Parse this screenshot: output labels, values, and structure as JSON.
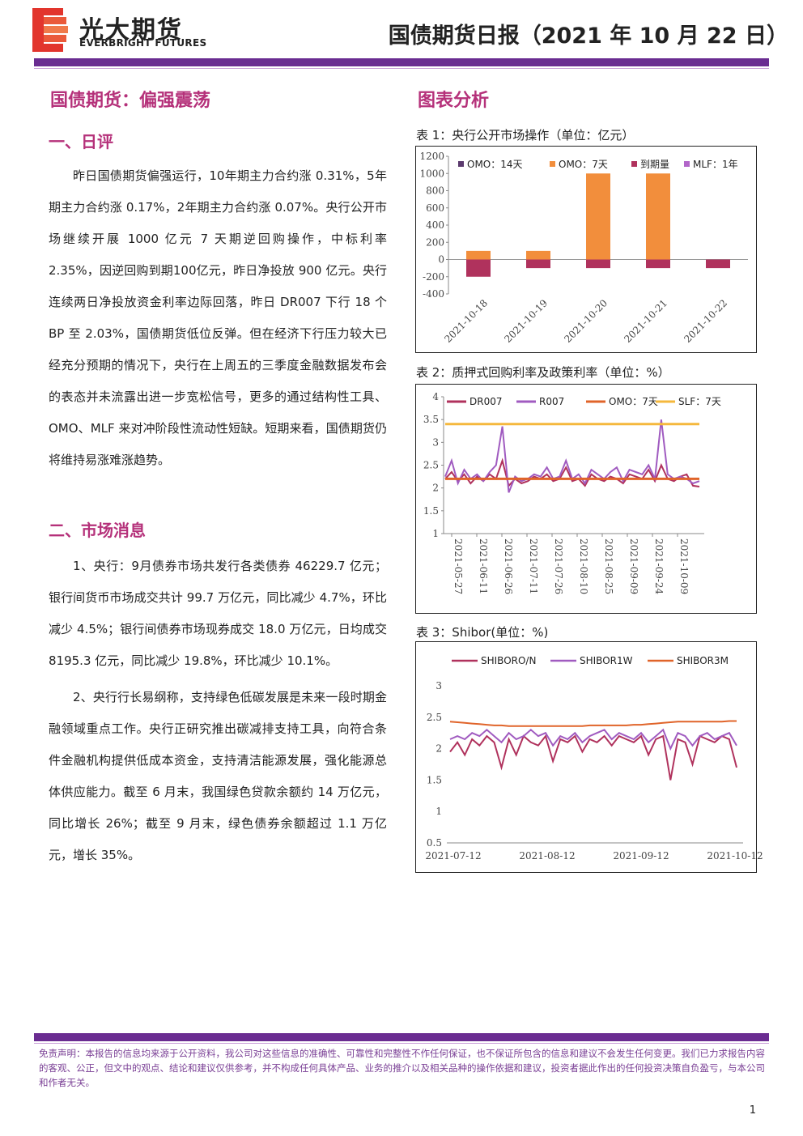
{
  "header": {
    "brand_cn": "光大期货",
    "brand_en": "EVERBRIGHT FUTURES",
    "report_title": "国债期货日报（2021 年 10 月 22 日）"
  },
  "left": {
    "main_title": "国债期货：偏强震荡",
    "section1_title": "一、日评",
    "section1_paragraphs": [
      "昨日国债期货偏强运行，10年期主力合约涨 0.31%，5年期主力合约涨 0.17%，2年期主力合约涨 0.07%。央行公开市场继续开展 1000 亿元 7 天期逆回购操作，中标利率 2.35%，因逆回购到期100亿元，昨日净投放 900 亿元。央行连续两日净投放资金利率边际回落，昨日 DR007 下行 18 个 BP 至 2.03%，国债期货低位反弹。但在经济下行压力较大已经充分预期的情况下，央行在上周五的三季度金融数据发布会的表态并未流露出进一步宽松信号，更多的通过结构性工具、OMO、MLF 来对冲阶段性流动性短缺。短期来看，国债期货仍将维持易涨难涨趋势。"
    ],
    "section2_title": "二、市场消息",
    "section2_paragraphs": [
      "1、央行：9月债券市场共发行各类债券 46229.7 亿元；银行间货币市场成交共计 99.7 万亿元，同比减少 4.7%，环比减少 4.5%；银行间债券市场现券成交 18.0 万亿元，日均成交 8195.3 亿元，同比减少 19.8%，环比减少 10.1%。",
      "2、央行行长易纲称，支持绿色低碳发展是未来一段时期金融领域重点工作。央行正研究推出碳减排支持工具，向符合条件金融机构提供低成本资金，支持清洁能源发展，强化能源总体供应能力。截至 6 月末，我国绿色贷款余额约 14 万亿元，同比增长 26%；截至 9 月末，绿色债券余额超过 1.1 万亿元，增长 35%。"
    ]
  },
  "right": {
    "section_title": "图表分析",
    "chart1_caption": "表 1：央行公开市场操作（单位：亿元）",
    "chart2_caption": "表 2：质押式回购利率及政策利率（单位：%）",
    "chart3_caption": "表 3：Shibor(单位：%)"
  },
  "footer": {
    "disclaimer": "免责声明：本报告的信息均来源于公开资料，我公司对这些信息的准确性、可靠性和完整性不作任何保证，也不保证所包含的信息和建议不会发生任何变更。我们已力求报告内容的客观、公正，但文中的观点、结论和建议仅供参考，并不构成任何具体产品、业务的推介以及相关品种的操作依据和建议，投资者据此作出的任何投资决策自负盈亏，与本公司和作者无关。",
    "page_number": "1"
  },
  "colors": {
    "brand_purple": "#6a2c91",
    "heading_magenta": "#b5317a",
    "omo14": "#5b3a6e",
    "omo7": "#f28e3c",
    "maturity": "#b0325d",
    "mlf": "#b266c9",
    "dr007": "#b0325d",
    "r007": "#a05bc0",
    "omo_line": "#e0642a",
    "slf": "#f5b83d",
    "shibor_on": "#b0325d",
    "shibor_1w": "#a05bc0",
    "shibor_3m": "#e0642a"
  },
  "chart_data": [
    {
      "type": "bar",
      "categories": [
        "2021-10-18",
        "2021-10-19",
        "2021-10-20",
        "2021-10-21",
        "2021-10-22"
      ],
      "ylim": [
        -400,
        1200
      ],
      "yticks": [
        -400,
        -200,
        0,
        200,
        400,
        600,
        800,
        1000,
        1200
      ],
      "legend_position": "top",
      "series": [
        {
          "name": "OMO：14天",
          "values": [
            0,
            0,
            0,
            0,
            0
          ]
        },
        {
          "name": "OMO：7天",
          "values": [
            100,
            100,
            1000,
            1000,
            0
          ]
        },
        {
          "name": "到期量",
          "values": [
            -200,
            -100,
            -100,
            -100,
            -100
          ]
        },
        {
          "name": "MLF：1年",
          "values": [
            0,
            0,
            0,
            0,
            0
          ]
        }
      ]
    },
    {
      "type": "line",
      "x_tick_labels": [
        "2021-05-27",
        "2021-06-11",
        "2021-06-26",
        "2021-07-11",
        "2021-07-26",
        "2021-08-10",
        "2021-08-25",
        "2021-09-09",
        "2021-09-24",
        "2021-10-09"
      ],
      "x_range": [
        "2021-05-21",
        "2021-10-22"
      ],
      "ylim": [
        1,
        4
      ],
      "yticks": [
        1,
        1.5,
        2,
        2.5,
        3,
        3.5,
        4
      ],
      "legend_position": "top",
      "series": [
        {
          "name": "DR007",
          "values": [
            2.2,
            2.35,
            2.15,
            2.3,
            2.1,
            2.25,
            2.15,
            2.3,
            2.2,
            2.6,
            2.05,
            2.2,
            2.1,
            2.15,
            2.25,
            2.2,
            2.3,
            2.15,
            2.2,
            2.45,
            2.15,
            2.2,
            2.05,
            2.3,
            2.2,
            2.15,
            2.25,
            2.2,
            2.1,
            2.3,
            2.25,
            2.2,
            2.4,
            2.15,
            2.5,
            2.2,
            2.15,
            2.25,
            2.3,
            2.05,
            2.03
          ]
        },
        {
          "name": "R007",
          "values": [
            2.25,
            2.6,
            2.1,
            2.4,
            2.2,
            2.3,
            2.15,
            2.35,
            2.5,
            3.35,
            1.9,
            2.25,
            2.15,
            2.2,
            2.3,
            2.25,
            2.45,
            2.2,
            2.25,
            2.6,
            2.2,
            2.3,
            2.1,
            2.4,
            2.3,
            2.2,
            2.35,
            2.45,
            2.15,
            2.4,
            2.35,
            2.3,
            2.5,
            2.2,
            3.5,
            2.3,
            2.2,
            2.25,
            2.2,
            2.1,
            2.15
          ]
        },
        {
          "name": "OMO：7天",
          "values": [
            2.2,
            2.2
          ]
        },
        {
          "name": "SLF：7天",
          "values": [
            3.4,
            3.4
          ]
        }
      ]
    },
    {
      "type": "line",
      "x_tick_labels": [
        "2021-07-12",
        "2021-08-12",
        "2021-09-12",
        "2021-10-12"
      ],
      "x_range": [
        "2021-07-12",
        "2021-10-22"
      ],
      "ylim": [
        0.5,
        3
      ],
      "yticks": [
        0.5,
        1,
        1.5,
        2,
        2.5,
        3
      ],
      "legend_position": "top",
      "series": [
        {
          "name": "SHIBORO/N",
          "values": [
            1.95,
            2.1,
            1.9,
            2.15,
            2.05,
            2.2,
            2.1,
            1.7,
            2.15,
            1.9,
            2.2,
            2.1,
            2.05,
            2.2,
            1.8,
            2.15,
            2.1,
            2.2,
            1.95,
            2.15,
            2.1,
            2.2,
            2.05,
            2.2,
            2.15,
            2.1,
            2.2,
            1.9,
            2.15,
            2.2,
            1.5,
            2.15,
            2.1,
            1.75,
            2.2,
            2.15,
            2.1,
            2.2,
            2.15,
            1.7
          ]
        },
        {
          "name": "SHIBOR1W",
          "values": [
            2.15,
            2.2,
            2.15,
            2.25,
            2.2,
            2.3,
            2.2,
            2.1,
            2.25,
            2.15,
            2.2,
            2.3,
            2.2,
            2.25,
            2.05,
            2.2,
            2.15,
            2.25,
            2.1,
            2.2,
            2.25,
            2.3,
            2.15,
            2.25,
            2.2,
            2.15,
            2.25,
            2.1,
            2.2,
            2.3,
            2.0,
            2.25,
            2.2,
            2.05,
            2.2,
            2.25,
            2.15,
            2.2,
            2.25,
            2.05
          ]
        },
        {
          "name": "SHIBOR3M",
          "values": [
            2.43,
            2.42,
            2.41,
            2.4,
            2.39,
            2.38,
            2.37,
            2.37,
            2.36,
            2.36,
            2.36,
            2.36,
            2.36,
            2.36,
            2.36,
            2.36,
            2.36,
            2.36,
            2.36,
            2.37,
            2.37,
            2.37,
            2.37,
            2.37,
            2.37,
            2.38,
            2.38,
            2.39,
            2.4,
            2.41,
            2.42,
            2.43,
            2.43,
            2.43,
            2.43,
            2.43,
            2.43,
            2.43,
            2.44,
            2.44
          ]
        }
      ]
    }
  ]
}
